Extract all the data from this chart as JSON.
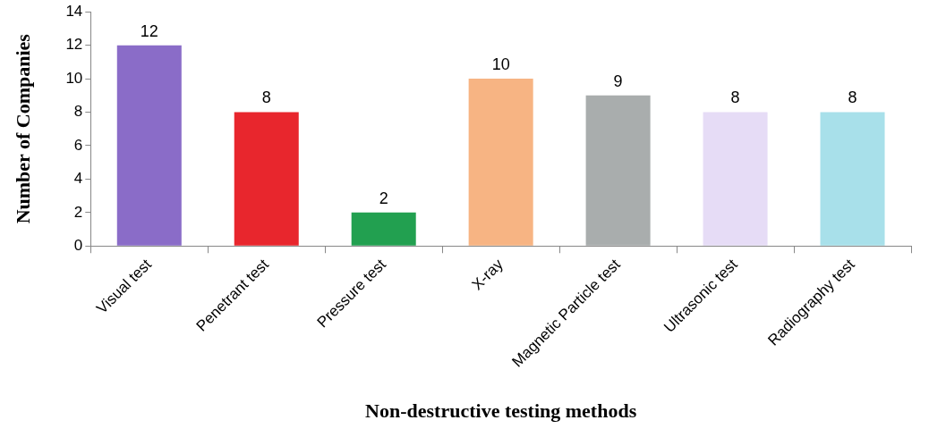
{
  "chart_data": {
    "type": "bar",
    "xlabel": "Non-destructive testing methods",
    "ylabel": "Number of Companies",
    "categories": [
      "Visual test",
      "Penetrant test",
      "Pressure test",
      "X-ray",
      "Magnetic Particle test",
      "Ultrasonic test",
      "Radiography test"
    ],
    "values": [
      12,
      8,
      2,
      10,
      9,
      8,
      8
    ],
    "colors": [
      "#8a6cc8",
      "#e8262d",
      "#22a050",
      "#f7b483",
      "#a9adad",
      "#e6dcf6",
      "#a8e0ea"
    ],
    "ylim": [
      0,
      14
    ],
    "yticks": [
      0,
      2,
      4,
      6,
      8,
      10,
      12,
      14
    ],
    "grid": false,
    "legend": false,
    "data_labels": true
  }
}
